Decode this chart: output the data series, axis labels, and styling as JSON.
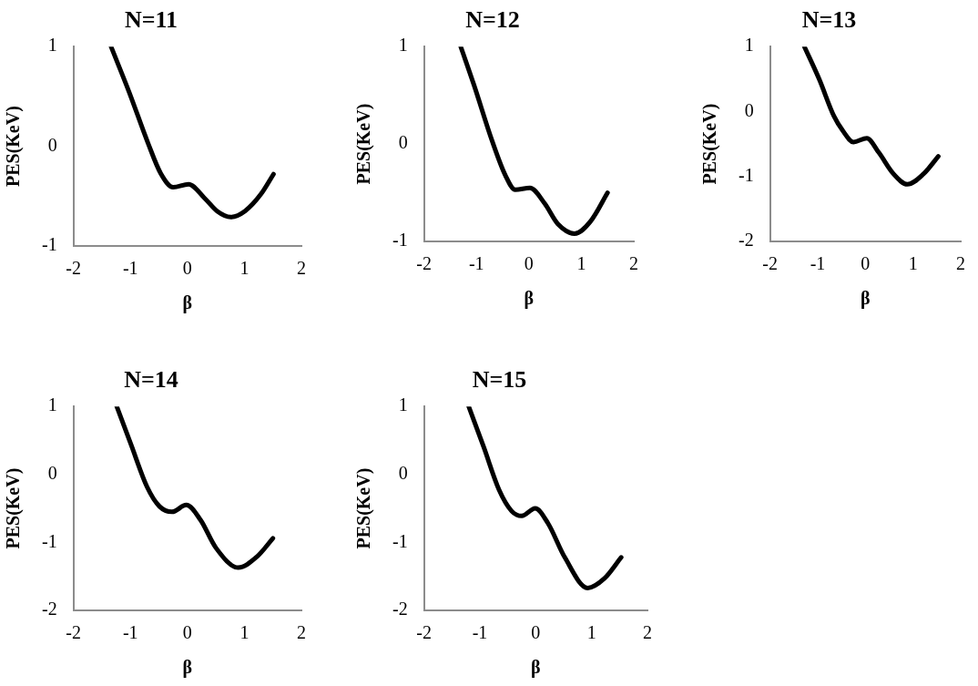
{
  "chart_data": [
    {
      "type": "line",
      "title": "N=11",
      "xlabel": "β",
      "ylabel": "PES(KeV)",
      "xlim": [
        -2,
        2
      ],
      "ylim": [
        -1,
        1
      ],
      "xticks": [
        -2,
        -1,
        0,
        1,
        2
      ],
      "yticks": [
        -1,
        0,
        1
      ],
      "grid": false,
      "legend": false,
      "marker": "none",
      "line_style": "solid",
      "series": [
        {
          "color": "#000000",
          "x": [
            -1.34,
            -1.02,
            -0.69,
            -0.47,
            -0.25,
            0.02,
            0.3,
            0.52,
            0.76,
            1.01,
            1.29,
            1.51
          ],
          "values": [
            1.0,
            0.54,
            0.03,
            -0.27,
            -0.41,
            -0.38,
            -0.52,
            -0.65,
            -0.71,
            -0.65,
            -0.48,
            -0.28
          ]
        }
      ]
    },
    {
      "type": "line",
      "title": "N=12",
      "xlabel": "β",
      "ylabel": "PES(KeV)",
      "xlim": [
        -2,
        2
      ],
      "ylim": [
        -1,
        1
      ],
      "xticks": [
        -2,
        -1,
        0,
        1,
        2
      ],
      "yticks": [
        -1,
        0,
        1
      ],
      "grid": false,
      "legend": false,
      "marker": "none",
      "line_style": "solid",
      "series": [
        {
          "color": "#000000",
          "x": [
            -1.3,
            -1.05,
            -0.7,
            -0.45,
            -0.26,
            0.02,
            0.3,
            0.55,
            0.87,
            1.18,
            1.5
          ],
          "values": [
            1.0,
            0.61,
            0.03,
            -0.32,
            -0.47,
            -0.45,
            -0.61,
            -0.82,
            -0.92,
            -0.79,
            -0.5
          ]
        }
      ]
    },
    {
      "type": "line",
      "title": "N=13",
      "xlabel": "β",
      "ylabel": "PES(KeV)",
      "xlim": [
        -2,
        2
      ],
      "ylim": [
        -2,
        1
      ],
      "xticks": [
        -2,
        -1,
        0,
        1,
        2
      ],
      "yticks": [
        -2,
        -1,
        0,
        1
      ],
      "grid": false,
      "legend": false,
      "marker": "none",
      "line_style": "solid",
      "series": [
        {
          "color": "#000000",
          "x": [
            -1.28,
            -0.97,
            -0.66,
            -0.47,
            -0.25,
            0.03,
            0.28,
            0.59,
            0.88,
            1.22,
            1.53
          ],
          "values": [
            1.0,
            0.5,
            -0.07,
            -0.3,
            -0.47,
            -0.41,
            -0.63,
            -0.96,
            -1.12,
            -0.96,
            -0.69
          ]
        }
      ]
    },
    {
      "type": "line",
      "title": "N=14",
      "xlabel": "β",
      "ylabel": "PES(KeV)",
      "xlim": [
        -2,
        2
      ],
      "ylim": [
        -2,
        1
      ],
      "xticks": [
        -2,
        -1,
        0,
        1,
        2
      ],
      "yticks": [
        -2,
        -1,
        0,
        1
      ],
      "grid": false,
      "legend": false,
      "marker": "none",
      "line_style": "solid",
      "series": [
        {
          "color": "#000000",
          "x": [
            -1.24,
            -0.99,
            -0.71,
            -0.49,
            -0.27,
            -0.02,
            0.23,
            0.5,
            0.89,
            1.22,
            1.5
          ],
          "values": [
            1.0,
            0.44,
            -0.18,
            -0.47,
            -0.55,
            -0.45,
            -0.67,
            -1.08,
            -1.37,
            -1.21,
            -0.94
          ]
        }
      ]
    },
    {
      "type": "line",
      "title": "N=15",
      "xlabel": "β",
      "ylabel": "PES(KeV)",
      "xlim": [
        -2,
        2
      ],
      "ylim": [
        -2,
        1
      ],
      "xticks": [
        -2,
        -1,
        0,
        1,
        2
      ],
      "yticks": [
        -2,
        -1,
        0,
        1
      ],
      "grid": false,
      "legend": false,
      "marker": "none",
      "line_style": "solid",
      "series": [
        {
          "color": "#000000",
          "x": [
            -1.2,
            -0.93,
            -0.66,
            -0.43,
            -0.25,
            -0.01,
            0.22,
            0.52,
            0.93,
            1.23,
            1.53
          ],
          "values": [
            1.0,
            0.4,
            -0.22,
            -0.54,
            -0.61,
            -0.5,
            -0.72,
            -1.22,
            -1.67,
            -1.53,
            -1.22
          ]
        }
      ]
    }
  ]
}
